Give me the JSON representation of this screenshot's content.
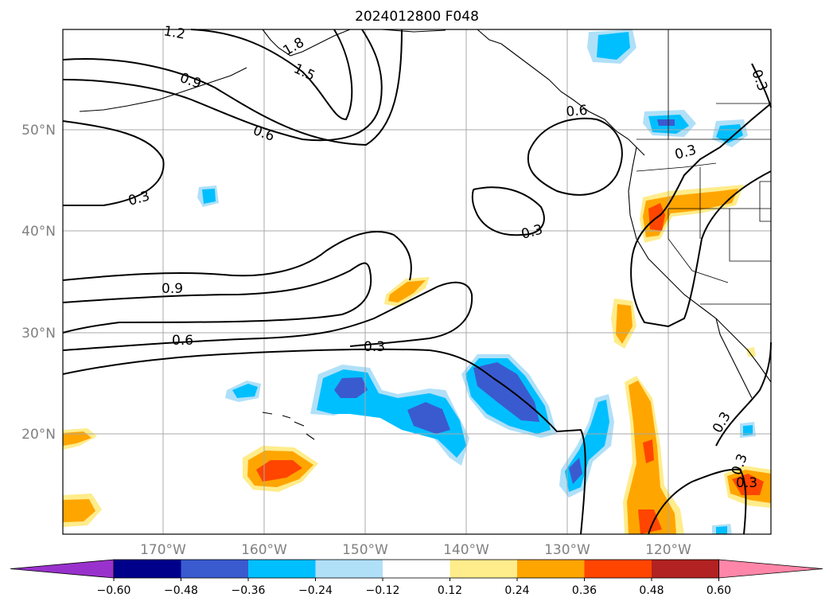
{
  "map": {
    "title": "2024012800 F048",
    "longitude_ticks": [
      "170°W",
      "160°W",
      "150°W",
      "140°W",
      "130°W",
      "120°W"
    ],
    "latitude_ticks": [
      "20°N",
      "30°N",
      "40°N",
      "50°N"
    ],
    "contour_labels": [
      "1.2",
      "1.8",
      "1.5",
      "0.9",
      "0.6",
      "0.3",
      "0.3",
      "0.3",
      "0.9",
      "0.6",
      "0.3",
      "0.6",
      "0.3",
      "0.3",
      "0.3",
      "0.3"
    ],
    "colorbar": {
      "tick_labels": [
        "−0.60",
        "−0.48",
        "−0.36",
        "−0.24",
        "−0.12",
        "0.12",
        "0.24",
        "0.36",
        "0.48",
        "0.60"
      ],
      "levels": [
        -0.6,
        -0.48,
        -0.36,
        -0.24,
        -0.12,
        0.12,
        0.24,
        0.36,
        0.48,
        0.6
      ],
      "colors": [
        "#9932cc",
        "#00008b",
        "#3a5bd0",
        "#00bfff",
        "#b0e0f8",
        "#ffffff",
        "#ffec8b",
        "#ffa500",
        "#ff4500",
        "#b22222",
        "#ff86a8"
      ]
    }
  }
}
